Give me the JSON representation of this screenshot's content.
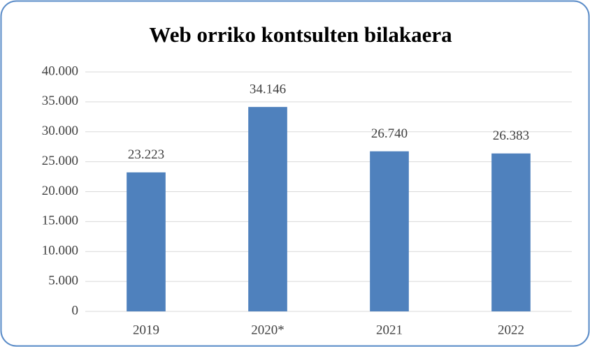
{
  "chart_data": {
    "type": "bar",
    "title": "Web orriko kontsulten bilakaera",
    "categories": [
      "2019",
      "2020*",
      "2021",
      "2022"
    ],
    "values": [
      23223,
      34146,
      26740,
      26383
    ],
    "value_labels": [
      "23.223",
      "34.146",
      "26.740",
      "26.383"
    ],
    "color": "#4f81bd",
    "ylim": [
      0,
      40000
    ],
    "yticks": [
      0,
      {
        "value": 5000,
        "label": "5.000"
      },
      {
        "value": 10000,
        "label": "10.000"
      },
      {
        "value": 15000,
        "label": "15.000"
      },
      {
        "value": 20000,
        "label": "20.000"
      },
      {
        "value": 25000,
        "label": "25.000"
      },
      {
        "value": 30000,
        "label": "30.000"
      },
      {
        "value": 35000,
        "label": "35.000"
      },
      {
        "value": 40000,
        "label": "40.000"
      }
    ],
    "grid": true
  }
}
